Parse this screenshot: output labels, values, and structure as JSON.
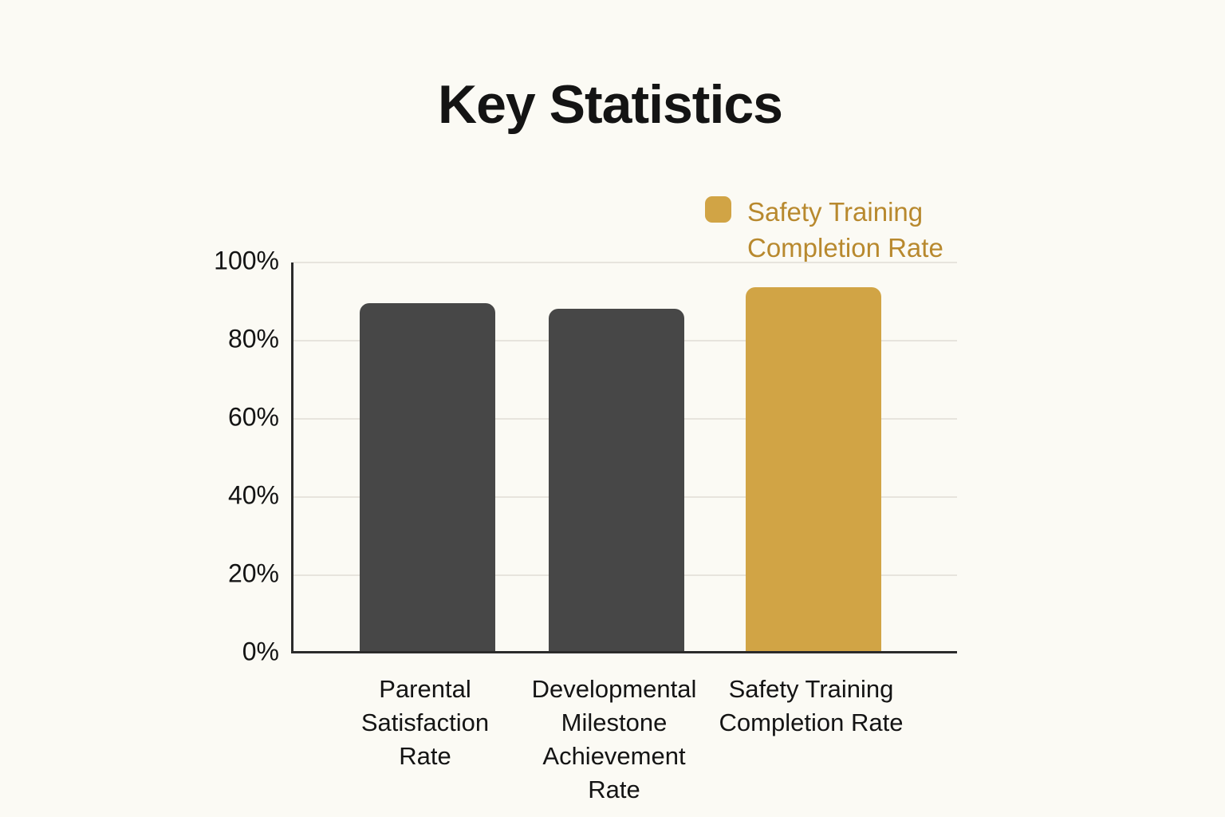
{
  "page": {
    "background_color": "#FBFAF4"
  },
  "chart_data": {
    "type": "bar",
    "title": "Key Statistics",
    "categories": [
      "Parental Satisfaction Rate",
      "Developmental Milestone Achievement Rate",
      "Safety Training Completion Rate"
    ],
    "category_label_lines": [
      [
        "Parental",
        "Satisfaction",
        "Rate"
      ],
      [
        "Developmental",
        "Milestone",
        "Achievement",
        "Rate"
      ],
      [
        "Safety Training",
        "Completion Rate"
      ]
    ],
    "values": [
      89,
      87.5,
      93
    ],
    "value_unit": "%",
    "bar_colors": [
      "#474747",
      "#474747",
      "#D1A445"
    ],
    "xlabel": "",
    "ylabel": "",
    "ylim": [
      0,
      100
    ],
    "ytick_values": [
      0,
      20,
      40,
      60,
      80,
      100
    ],
    "ytick_labels": [
      "0%",
      "20%",
      "40%",
      "60%",
      "80%",
      "100%"
    ],
    "grid": true,
    "legend_position": "top-right",
    "legend": {
      "label": "Safety Training Completion Rate",
      "label_lines": [
        "Safety Training",
        "Completion Rate"
      ],
      "swatch_color": "#D1A445",
      "text_color": "#B8892E"
    }
  },
  "colors": {
    "background": "#FBFAF4",
    "bar_dark": "#474747",
    "bar_gold": "#D1A445",
    "axis": "#2B2B2B",
    "gridline": "#E7E4DD",
    "text": "#141414",
    "legend_text": "#B8892E"
  }
}
